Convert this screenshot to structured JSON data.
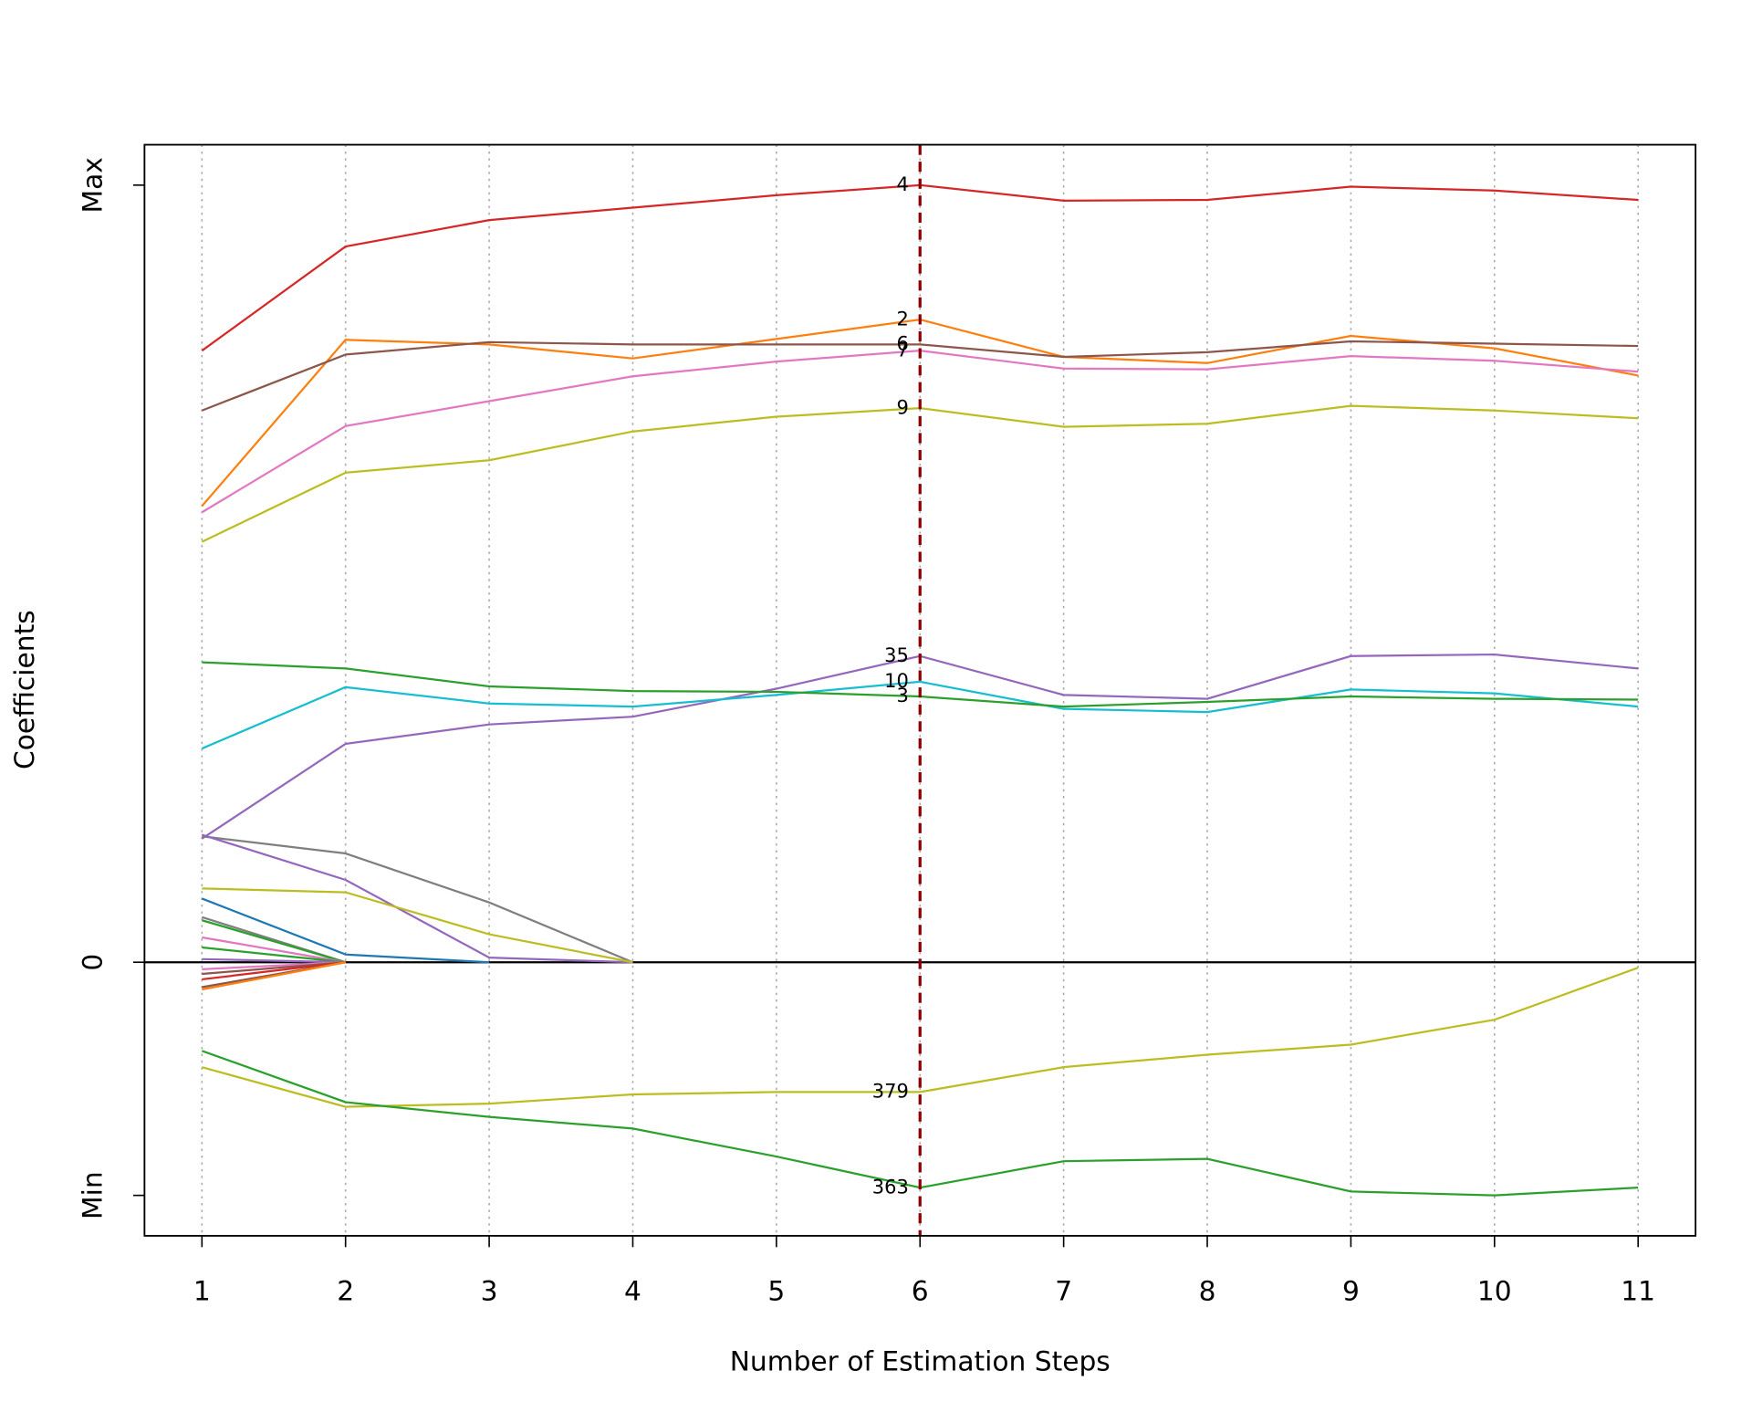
{
  "chart_data": {
    "type": "line",
    "xlabel": "Number of Estimation Steps",
    "ylabel": "Coefficients",
    "x": [
      1,
      2,
      3,
      4,
      5,
      6,
      7,
      8,
      9,
      10,
      11
    ],
    "xlim": [
      0.6,
      11.4
    ],
    "xticks": [
      1,
      2,
      3,
      4,
      5,
      6,
      7,
      8,
      9,
      10,
      11
    ],
    "ylim": [
      -35.2,
      105.2
    ],
    "yticks": [
      {
        "value": -30,
        "label": "Min"
      },
      0,
      {
        "value": 100,
        "label": "Max"
      }
    ],
    "grid": "x",
    "vline": 6,
    "label_at": 6,
    "series": [
      {
        "name": "4",
        "color": "#d62728",
        "values": [
          78.7,
          92.1,
          95.5,
          97.1,
          98.7,
          100,
          98.0,
          98.1,
          99.8,
          99.3,
          98.1
        ]
      },
      {
        "name": "2",
        "color": "#ff7f0e",
        "values": [
          58.7,
          80.1,
          79.5,
          77.7,
          80.2,
          82.7,
          77.9,
          77.1,
          80.6,
          79.0,
          75.5
        ]
      },
      {
        "name": "6",
        "color": "#8c564b",
        "values": [
          71.0,
          78.2,
          79.8,
          79.5,
          79.5,
          79.5,
          77.9,
          78.5,
          79.9,
          79.6,
          79.3
        ]
      },
      {
        "name": "7",
        "color": "#e377c2",
        "values": [
          57.9,
          69.0,
          72.2,
          75.4,
          77.3,
          78.7,
          76.4,
          76.3,
          78.0,
          77.4,
          76.0
        ]
      },
      {
        "name": "9",
        "color": "#bcbd22",
        "values": [
          54.1,
          63.0,
          64.6,
          68.3,
          70.2,
          71.3,
          68.9,
          69.3,
          71.6,
          71.0,
          70.0
        ]
      },
      {
        "name": "35",
        "color": "#9467bd",
        "values": [
          15.9,
          28.1,
          30.6,
          31.6,
          35.2,
          39.4,
          34.4,
          33.9,
          39.4,
          39.6,
          37.8
        ]
      },
      {
        "name": "10",
        "color": "#17becf",
        "values": [
          27.5,
          35.4,
          33.3,
          32.9,
          34.4,
          36.1,
          32.6,
          32.2,
          35.1,
          34.6,
          32.9
        ]
      },
      {
        "name": "3",
        "color": "#2ca02c",
        "values": [
          38.6,
          37.8,
          35.5,
          34.9,
          34.8,
          34.2,
          32.9,
          33.5,
          34.2,
          33.9,
          33.8
        ]
      },
      {
        "name": "379",
        "color": "#bcbd22",
        "values": [
          -13.5,
          -18.6,
          -18.2,
          -17.0,
          -16.7,
          -16.7,
          -13.5,
          -11.9,
          -10.6,
          -7.4,
          -0.7
        ]
      },
      {
        "name": "363",
        "color": "#2ca02c",
        "values": [
          -11.4,
          -18.0,
          -19.9,
          -21.4,
          -25.0,
          -29.0,
          -25.6,
          -25.3,
          -29.5,
          -30,
          -29.0
        ]
      },
      {
        "color": "#7f7f7f",
        "values": [
          16.2,
          14.0,
          7.7,
          0,
          null,
          null,
          null,
          null,
          null,
          null,
          null
        ]
      },
      {
        "color": "#9467bd",
        "values": [
          16.4,
          10.6,
          0.6,
          0,
          null,
          null,
          null,
          null,
          null,
          null,
          null
        ]
      },
      {
        "color": "#bcbd22",
        "values": [
          9.5,
          9.0,
          3.6,
          0,
          null,
          null,
          null,
          null,
          null,
          null,
          null
        ]
      },
      {
        "color": "#1f77b4",
        "values": [
          8.2,
          1.0,
          0,
          null,
          null,
          null,
          null,
          null,
          null,
          null,
          null
        ]
      },
      {
        "color": "#7f7f7f",
        "values": [
          5.8,
          0,
          null,
          null,
          null,
          null,
          null,
          null,
          null,
          null,
          null
        ]
      },
      {
        "color": "#2ca02c",
        "values": [
          5.4,
          0,
          null,
          null,
          null,
          null,
          null,
          null,
          null,
          null,
          null
        ]
      },
      {
        "color": "#e377c2",
        "values": [
          3.2,
          0,
          null,
          null,
          null,
          null,
          null,
          null,
          null,
          null,
          null
        ]
      },
      {
        "color": "#2ca02c",
        "values": [
          1.9,
          0,
          null,
          null,
          null,
          null,
          null,
          null,
          null,
          null,
          null
        ]
      },
      {
        "color": "#9467bd",
        "values": [
          0.4,
          0,
          null,
          null,
          null,
          null,
          null,
          null,
          null,
          null,
          null
        ]
      },
      {
        "color": "#e377c2",
        "values": [
          -0.9,
          0,
          null,
          null,
          null,
          null,
          null,
          null,
          null,
          null,
          null
        ]
      },
      {
        "color": "#8c564b",
        "values": [
          -1.5,
          0,
          null,
          null,
          null,
          null,
          null,
          null,
          null,
          null,
          null
        ]
      },
      {
        "color": "#d62728",
        "values": [
          -2.2,
          0,
          null,
          null,
          null,
          null,
          null,
          null,
          null,
          null,
          null
        ]
      },
      {
        "color": "#8c564b",
        "values": [
          -3.2,
          0,
          null,
          null,
          null,
          null,
          null,
          null,
          null,
          null,
          null
        ]
      },
      {
        "color": "#ff7f0e",
        "values": [
          -3.5,
          0,
          null,
          null,
          null,
          null,
          null,
          null,
          null,
          null,
          null
        ]
      }
    ]
  }
}
